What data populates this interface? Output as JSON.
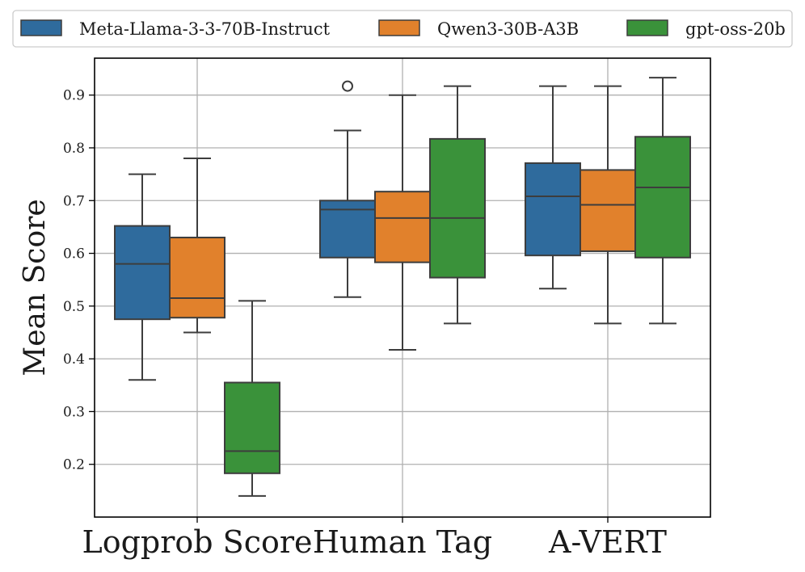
{
  "chart_data": {
    "type": "boxplot",
    "title": "",
    "xlabel": "",
    "ylabel": "Mean Score",
    "ylim": [
      0.1,
      0.97
    ],
    "yticks": [
      0.2,
      0.3,
      0.4,
      0.5,
      0.6,
      0.7,
      0.8,
      0.9
    ],
    "grid": true,
    "legend_position": "top",
    "categories": [
      "Logprob Score",
      "Human Tag",
      "A-VERT"
    ],
    "series": [
      {
        "name": "Meta-Llama-3-3-70B-Instruct",
        "color": "#2f6b9d",
        "boxes": [
          {
            "whislo": 0.36,
            "q1": 0.475,
            "med": 0.58,
            "q3": 0.652,
            "whishi": 0.75,
            "fliers": []
          },
          {
            "whislo": 0.517,
            "q1": 0.592,
            "med": 0.683,
            "q3": 0.7,
            "whishi": 0.833,
            "fliers": [
              0.917
            ]
          },
          {
            "whislo": 0.533,
            "q1": 0.596,
            "med": 0.708,
            "q3": 0.771,
            "whishi": 0.917,
            "fliers": []
          }
        ]
      },
      {
        "name": "Qwen3-30B-A3B",
        "color": "#e1812c",
        "boxes": [
          {
            "whislo": 0.45,
            "q1": 0.478,
            "med": 0.515,
            "q3": 0.63,
            "whishi": 0.78,
            "fliers": []
          },
          {
            "whislo": 0.417,
            "q1": 0.583,
            "med": 0.667,
            "q3": 0.717,
            "whishi": 0.9,
            "fliers": []
          },
          {
            "whislo": 0.467,
            "q1": 0.604,
            "med": 0.692,
            "q3": 0.758,
            "whishi": 0.917,
            "fliers": []
          }
        ]
      },
      {
        "name": "gpt-oss-20b",
        "color": "#3a923a",
        "boxes": [
          {
            "whislo": 0.14,
            "q1": 0.183,
            "med": 0.225,
            "q3": 0.355,
            "whishi": 0.51,
            "fliers": []
          },
          {
            "whislo": 0.467,
            "q1": 0.554,
            "med": 0.667,
            "q3": 0.817,
            "whishi": 0.917,
            "fliers": []
          },
          {
            "whislo": 0.467,
            "q1": 0.592,
            "med": 0.725,
            "q3": 0.821,
            "whishi": 0.933,
            "fliers": []
          }
        ]
      }
    ]
  },
  "styles": {
    "grid_color": "#b0b0b0",
    "box_edge_color": "#3d3d3d",
    "axis_color": "#000000",
    "text_color": "#1a1a1a",
    "legend_border_color": "#cccccc"
  }
}
